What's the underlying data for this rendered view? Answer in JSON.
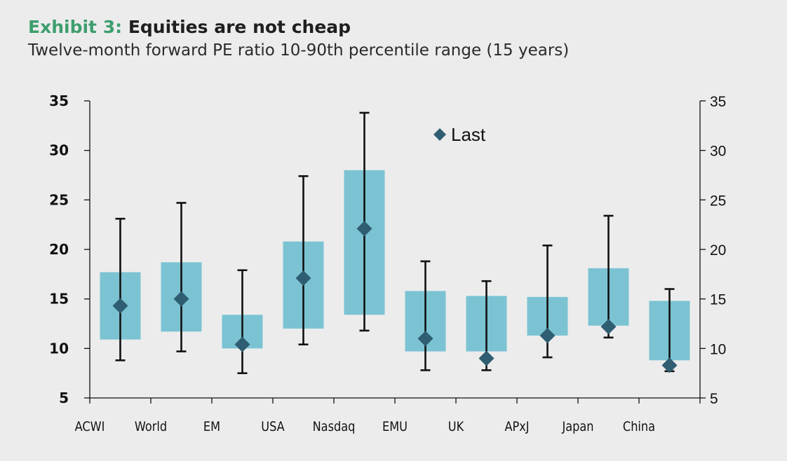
{
  "header": {
    "exhibit_number": "Exhibit 3:",
    "exhibit_title": "Equities are not cheap",
    "subtitle": "Twelve-month forward PE ratio 10-90th percentile range (15 years)"
  },
  "colors": {
    "box": "#7bc3d3",
    "whisker": "#111111",
    "marker": "#2f5d72",
    "exhibit_number": "#3e9e6e"
  },
  "chart_data": {
    "type": "box-range",
    "categories": [
      "ACWI",
      "World",
      "EM",
      "USA",
      "Nasdaq",
      "EMU",
      "UK",
      "APxJ",
      "Japan",
      "China"
    ],
    "range_10_90": [
      [
        10.9,
        17.7
      ],
      [
        11.7,
        18.7
      ],
      [
        10.0,
        13.4
      ],
      [
        12.0,
        20.8
      ],
      [
        13.4,
        28.0
      ],
      [
        9.7,
        15.8
      ],
      [
        9.7,
        15.3
      ],
      [
        11.3,
        15.2
      ],
      [
        12.3,
        18.1
      ],
      [
        8.8,
        14.8
      ]
    ],
    "min_max": [
      [
        8.8,
        23.1
      ],
      [
        9.7,
        24.7
      ],
      [
        7.5,
        17.9
      ],
      [
        10.4,
        27.4
      ],
      [
        11.8,
        33.8
      ],
      [
        7.8,
        18.8
      ],
      [
        7.8,
        16.8
      ],
      [
        9.1,
        20.4
      ],
      [
        11.1,
        23.4
      ],
      [
        7.7,
        16.0
      ]
    ],
    "series": [
      {
        "name": "Last",
        "values": [
          14.3,
          15.0,
          10.4,
          17.1,
          22.1,
          11.0,
          9.0,
          11.3,
          12.2,
          8.3
        ]
      }
    ],
    "ylim": [
      5,
      35
    ],
    "yticks": [
      "5",
      "10",
      "15",
      "20",
      "25",
      "30",
      "35"
    ],
    "legend_position": "top-center",
    "grid": false
  }
}
